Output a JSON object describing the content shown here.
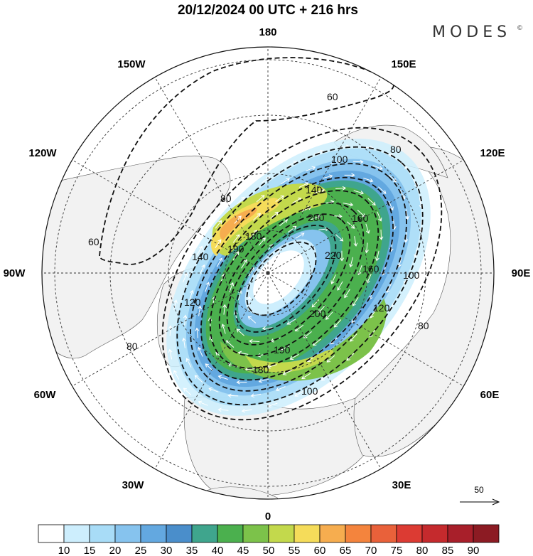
{
  "header": {
    "title": "20/12/2024  00 UTC  + 216 hrs",
    "brand": "MODES",
    "brand_mark": "©"
  },
  "map": {
    "projection": "north-polar-stereographic",
    "longitude_labels": [
      "180",
      "150E",
      "120E",
      "90E",
      "60E",
      "30E",
      "0",
      "30W",
      "60W",
      "90W",
      "120W",
      "150W"
    ],
    "contour_labels": [
      "60",
      "80",
      "80",
      "100",
      "140",
      "160",
      "180",
      "190",
      "200",
      "220",
      "200",
      "190",
      "180",
      "160",
      "140",
      "120",
      "120",
      "100",
      "100",
      "80",
      "60",
      "80",
      "60"
    ],
    "colors": {
      "land": "#f2f2f2",
      "ocean": "#ffffff",
      "grid": "#333333",
      "contour": "#111111",
      "wind_arrow": "#ffffff"
    }
  },
  "vector_reference": {
    "value": "50"
  },
  "colorbar": {
    "ticks": [
      "10",
      "15",
      "20",
      "25",
      "30",
      "35",
      "40",
      "45",
      "50",
      "55",
      "60",
      "65",
      "70",
      "75",
      "80",
      "85",
      "90"
    ],
    "colors": [
      "#ffffff",
      "#cdeefd",
      "#a8dcf7",
      "#86c3ee",
      "#63a8e0",
      "#4a8ecb",
      "#3fa58d",
      "#4bb04e",
      "#7cc24a",
      "#c3d94c",
      "#f5dc5a",
      "#f6ad4f",
      "#f4843d",
      "#e9613a",
      "#dc3b33",
      "#c52a2d",
      "#a81f2a",
      "#8c1b23"
    ]
  }
}
